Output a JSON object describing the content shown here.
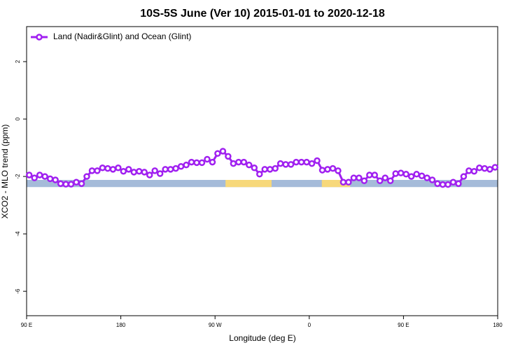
{
  "chart_data": {
    "type": "line",
    "title": "10S-5S June (Ver 10)   2015-01-01 to 2020-12-18",
    "x_label": "Longitude (deg E)",
    "y_label": "XCO2 - MLO trend (ppm)",
    "xlim": [
      90,
      540
    ],
    "ylim": [
      -6.85,
      3.22
    ],
    "xticks": [
      {
        "value": 90,
        "label": "90 E"
      },
      {
        "value": 180,
        "label": "180"
      },
      {
        "value": 270,
        "label": "90 W"
      },
      {
        "value": 360,
        "label": "0"
      },
      {
        "value": 450,
        "label": "90 E"
      },
      {
        "value": 540,
        "label": "180"
      }
    ],
    "yticks": [
      -6,
      -4,
      -2,
      0,
      2
    ],
    "legend": "top-left",
    "surface_band": {
      "ylim": [
        -2.12,
        -2.37
      ],
      "ocean_color": "#a5bbd9",
      "land_color": "#f7d87a",
      "land_regions": [
        [
          280,
          324
        ],
        [
          372,
          399
        ]
      ]
    },
    "series": [
      {
        "name": "Land (Nadir&Glint) and Ocean (Glint)",
        "color": "#a020f0",
        "x": [
          92.5,
          97.5,
          102.5,
          107.5,
          112.5,
          117.5,
          122.5,
          127.5,
          132.5,
          137.5,
          142.5,
          147.5,
          152.5,
          157.5,
          162.5,
          167.5,
          172.5,
          177.5,
          182.5,
          187.5,
          192.5,
          197.5,
          202.5,
          207.5,
          212.5,
          217.5,
          222.5,
          227.5,
          232.5,
          237.5,
          242.5,
          247.5,
          252.5,
          257.5,
          262.5,
          267.5,
          272.5,
          277.5,
          282.5,
          287.5,
          292.5,
          297.5,
          302.5,
          307.5,
          312.5,
          317.5,
          322.5,
          327.5,
          332.5,
          337.5,
          342.5,
          347.5,
          352.5,
          357.5,
          362.5,
          367.5,
          372.5,
          377.5,
          382.5,
          387.5,
          392.5,
          397.5,
          402.5,
          407.5,
          412.5,
          417.5,
          422.5,
          427.5,
          432.5,
          437.5,
          442.5,
          447.5,
          452.5,
          457.5,
          462.5,
          467.5,
          472.5,
          477.5,
          482.5,
          487.5,
          492.5,
          497.5,
          502.5,
          507.5,
          512.5,
          517.5,
          522.5,
          527.5,
          532.5,
          537.5
        ],
        "values": [
          -1.95,
          -2.05,
          -1.95,
          -2.0,
          -2.08,
          -2.12,
          -2.25,
          -2.27,
          -2.27,
          -2.2,
          -2.25,
          -2.0,
          -1.8,
          -1.8,
          -1.7,
          -1.72,
          -1.75,
          -1.7,
          -1.82,
          -1.75,
          -1.85,
          -1.82,
          -1.85,
          -1.95,
          -1.8,
          -1.9,
          -1.75,
          -1.75,
          -1.72,
          -1.65,
          -1.6,
          -1.5,
          -1.52,
          -1.52,
          -1.4,
          -1.5,
          -1.2,
          -1.12,
          -1.3,
          -1.55,
          -1.5,
          -1.5,
          -1.6,
          -1.7,
          -1.92,
          -1.75,
          -1.75,
          -1.72,
          -1.55,
          -1.58,
          -1.58,
          -1.5,
          -1.5,
          -1.5,
          -1.55,
          -1.45,
          -1.78,
          -1.75,
          -1.72,
          -1.8,
          -2.2,
          -2.2,
          -2.05,
          -2.05,
          -2.15,
          -1.95,
          -1.95,
          -2.15,
          -2.05,
          -2.15,
          -1.9,
          -1.88,
          -1.92,
          -2.0,
          -1.92,
          -1.98,
          -2.05,
          -2.12,
          -2.25,
          -2.28,
          -2.28,
          -2.2,
          -2.25,
          -2.0,
          -1.8,
          -1.82,
          -1.7,
          -1.72,
          -1.75,
          -1.68
        ]
      }
    ]
  }
}
